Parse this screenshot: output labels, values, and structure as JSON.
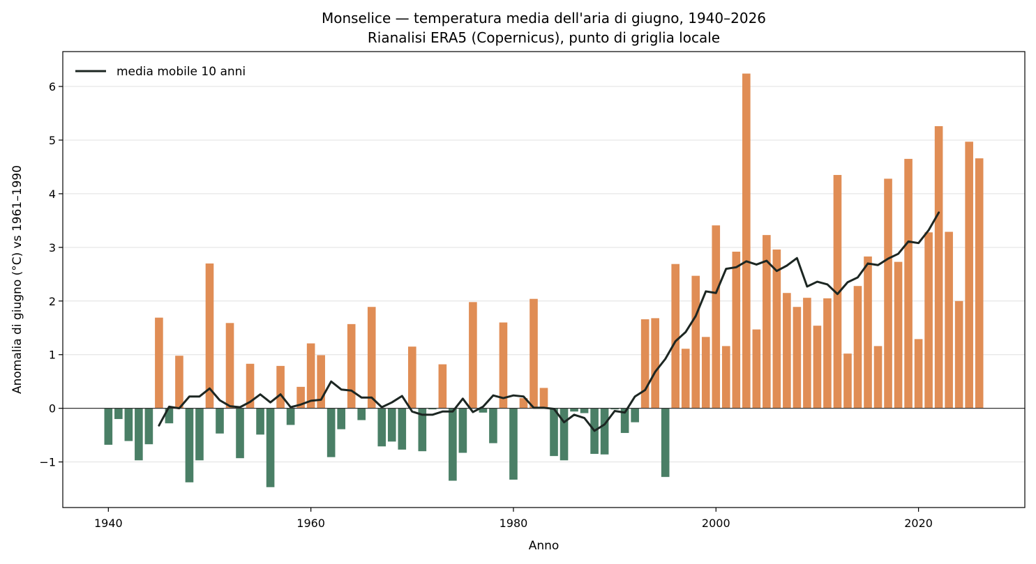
{
  "chart_data": {
    "type": "bar",
    "title": "Monselice — temperatura media dell'aria di giugno, 1940–2026",
    "subtitle": "Rianalisi ERA5 (Copernicus), punto di griglia locale",
    "xlabel": "Anno",
    "ylabel": "Anomalia di giugno (°C) vs 1961–1990",
    "xlim": [
      1935.5,
      2030.5
    ],
    "ylim": [
      -1.85,
      6.65
    ],
    "x_ticks": [
      "1940",
      "1960",
      "1980",
      "2000",
      "2020"
    ],
    "y_ticks": [
      "−1",
      "0",
      "1",
      "2",
      "3",
      "4",
      "5",
      "6"
    ],
    "grid": "horizontal",
    "legend_position": "top-left",
    "colors": {
      "positive": "#e08d55",
      "negative": "#4a7f66",
      "moving_average": "#1c2622",
      "zero_line": "#333333",
      "grid": "#e0e0e0"
    },
    "years": [
      1940,
      1941,
      1942,
      1943,
      1944,
      1945,
      1946,
      1947,
      1948,
      1949,
      1950,
      1951,
      1952,
      1953,
      1954,
      1955,
      1956,
      1957,
      1958,
      1959,
      1960,
      1961,
      1962,
      1963,
      1964,
      1965,
      1966,
      1967,
      1968,
      1969,
      1970,
      1971,
      1972,
      1973,
      1974,
      1975,
      1976,
      1977,
      1978,
      1979,
      1980,
      1981,
      1982,
      1983,
      1984,
      1985,
      1986,
      1987,
      1988,
      1989,
      1990,
      1991,
      1992,
      1993,
      1994,
      1995,
      1996,
      1997,
      1998,
      1999,
      2000,
      2001,
      2002,
      2003,
      2004,
      2005,
      2006,
      2007,
      2008,
      2009,
      2010,
      2011,
      2012,
      2013,
      2014,
      2015,
      2016,
      2017,
      2018,
      2019,
      2020,
      2021,
      2022,
      2023,
      2024,
      2025,
      2026
    ],
    "anomalies": [
      -0.68,
      -0.2,
      -0.61,
      -0.97,
      -0.67,
      1.69,
      -0.28,
      0.98,
      -1.38,
      -0.97,
      2.7,
      -0.47,
      1.59,
      -0.93,
      0.83,
      -0.49,
      -1.47,
      0.79,
      -0.31,
      0.4,
      1.21,
      0.99,
      -0.91,
      -0.39,
      1.57,
      -0.22,
      1.89,
      -0.71,
      -0.62,
      -0.77,
      1.15,
      -0.8,
      -0.02,
      0.82,
      -1.35,
      -0.83,
      1.98,
      -0.08,
      -0.65,
      1.6,
      -1.33,
      0.19,
      2.04,
      0.38,
      -0.89,
      -0.97,
      -0.06,
      -0.09,
      -0.85,
      -0.86,
      -0.02,
      -0.46,
      -0.26,
      1.66,
      1.68,
      -1.28,
      2.69,
      1.11,
      2.47,
      1.33,
      3.41,
      1.16,
      2.92,
      6.24,
      1.47,
      3.23,
      2.96,
      2.15,
      1.89,
      2.06,
      1.54,
      2.05,
      4.35,
      1.02,
      2.28,
      2.83,
      1.16,
      4.28,
      2.73,
      4.65,
      1.29,
      3.28,
      5.26,
      3.29,
      2.0,
      4.97,
      4.66
    ],
    "series": [
      {
        "name": "media mobile 10 anni",
        "x": [
          1945,
          1946,
          1947,
          1948,
          1949,
          1950,
          1951,
          1952,
          1953,
          1954,
          1955,
          1956,
          1957,
          1958,
          1959,
          1960,
          1961,
          1962,
          1963,
          1964,
          1965,
          1966,
          1967,
          1968,
          1969,
          1970,
          1971,
          1972,
          1973,
          1974,
          1975,
          1976,
          1977,
          1978,
          1979,
          1980,
          1981,
          1982,
          1983,
          1984,
          1985,
          1986,
          1987,
          1988,
          1989,
          1990,
          1991,
          1992,
          1993,
          1994,
          1995,
          1996,
          1997,
          1998,
          1999,
          2000,
          2001,
          2002,
          2003,
          2004,
          2005,
          2006,
          2007,
          2008,
          2009,
          2010,
          2011,
          2012,
          2013,
          2014,
          2015,
          2016,
          2017,
          2018,
          2019,
          2020,
          2021,
          2022
        ],
        "values": [
          -0.32,
          0.03,
          0.0,
          0.22,
          0.22,
          0.37,
          0.15,
          0.04,
          0.02,
          0.12,
          0.26,
          0.11,
          0.26,
          0.02,
          0.07,
          0.14,
          0.16,
          0.5,
          0.35,
          0.33,
          0.2,
          0.2,
          0.02,
          0.11,
          0.23,
          -0.06,
          -0.12,
          -0.12,
          -0.06,
          -0.06,
          0.18,
          -0.07,
          0.03,
          0.24,
          0.19,
          0.24,
          0.22,
          0.01,
          0.01,
          -0.01,
          -0.26,
          -0.12,
          -0.18,
          -0.42,
          -0.3,
          -0.05,
          -0.08,
          0.22,
          0.34,
          0.68,
          0.92,
          1.25,
          1.42,
          1.72,
          2.18,
          2.15,
          2.6,
          2.63,
          2.74,
          2.68,
          2.75,
          2.56,
          2.66,
          2.8,
          2.27,
          2.36,
          2.31,
          2.13,
          2.35,
          2.44,
          2.7,
          2.67,
          2.79,
          2.88,
          3.11,
          3.08,
          3.32,
          3.65
        ]
      }
    ]
  }
}
